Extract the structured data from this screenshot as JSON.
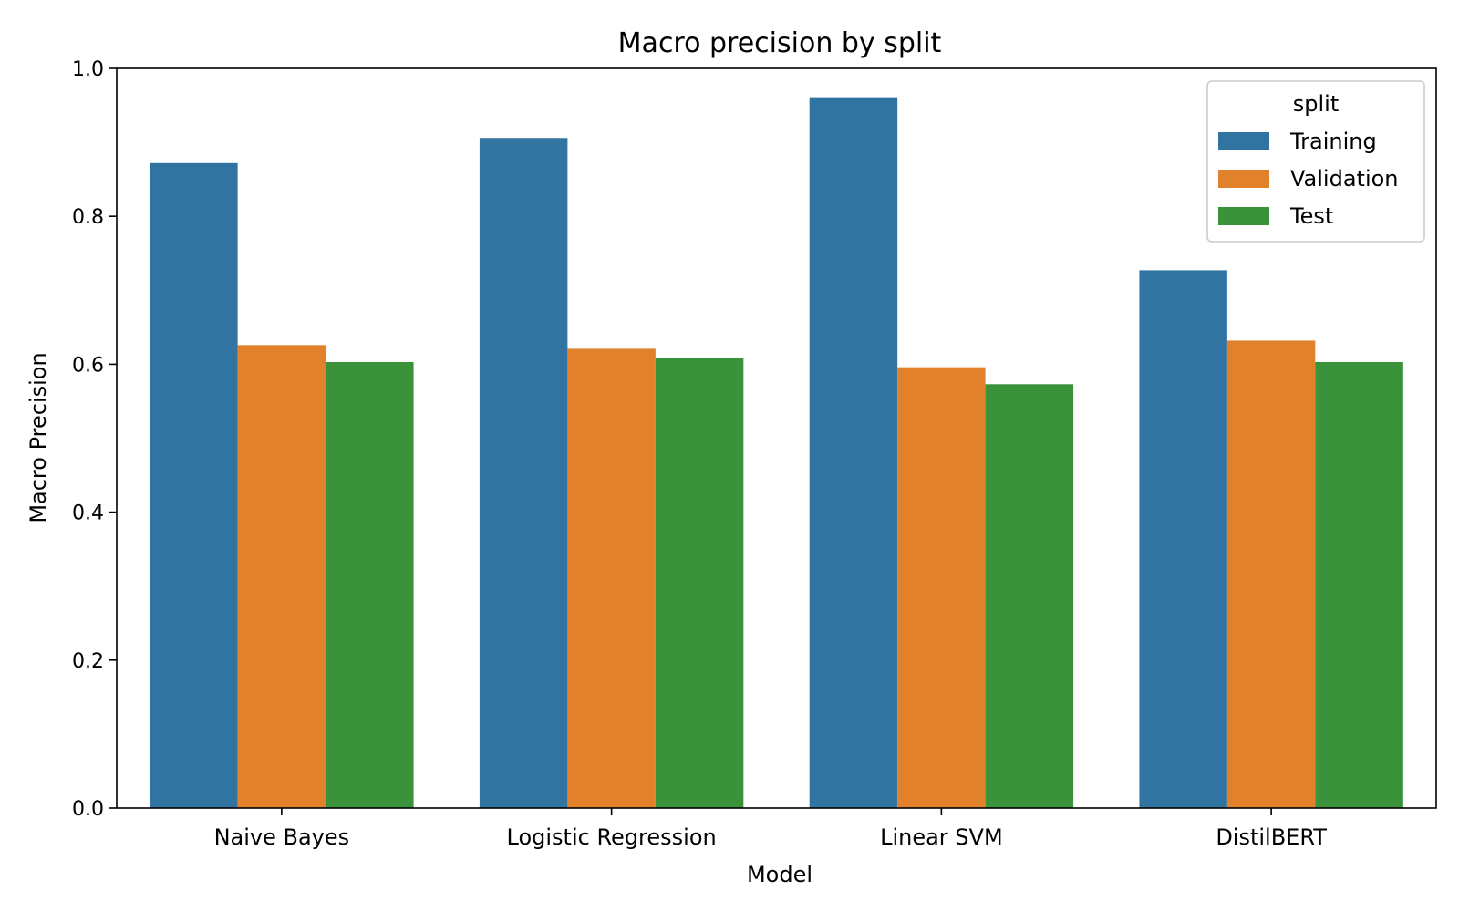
{
  "chart_data": {
    "type": "bar",
    "title": "Macro precision by split",
    "xlabel": "Model",
    "ylabel": "Macro Precision",
    "categories": [
      "Naive Bayes",
      "Logistic Regression",
      "Linear SVM",
      "DistilBERT"
    ],
    "ylim": [
      0.0,
      1.0
    ],
    "yticks": [
      "0.0",
      "0.2",
      "0.4",
      "0.6",
      "0.8",
      "1.0"
    ],
    "grid": false,
    "legend": {
      "title": "split",
      "position": "top-right"
    },
    "series": [
      {
        "name": "Training",
        "color": "#3274a1",
        "values": [
          0.872,
          0.906,
          0.961,
          0.727
        ]
      },
      {
        "name": "Validation",
        "color": "#e1812c",
        "values": [
          0.626,
          0.621,
          0.596,
          0.632
        ]
      },
      {
        "name": "Test",
        "color": "#3a923a",
        "values": [
          0.603,
          0.608,
          0.573,
          0.603
        ]
      }
    ]
  }
}
